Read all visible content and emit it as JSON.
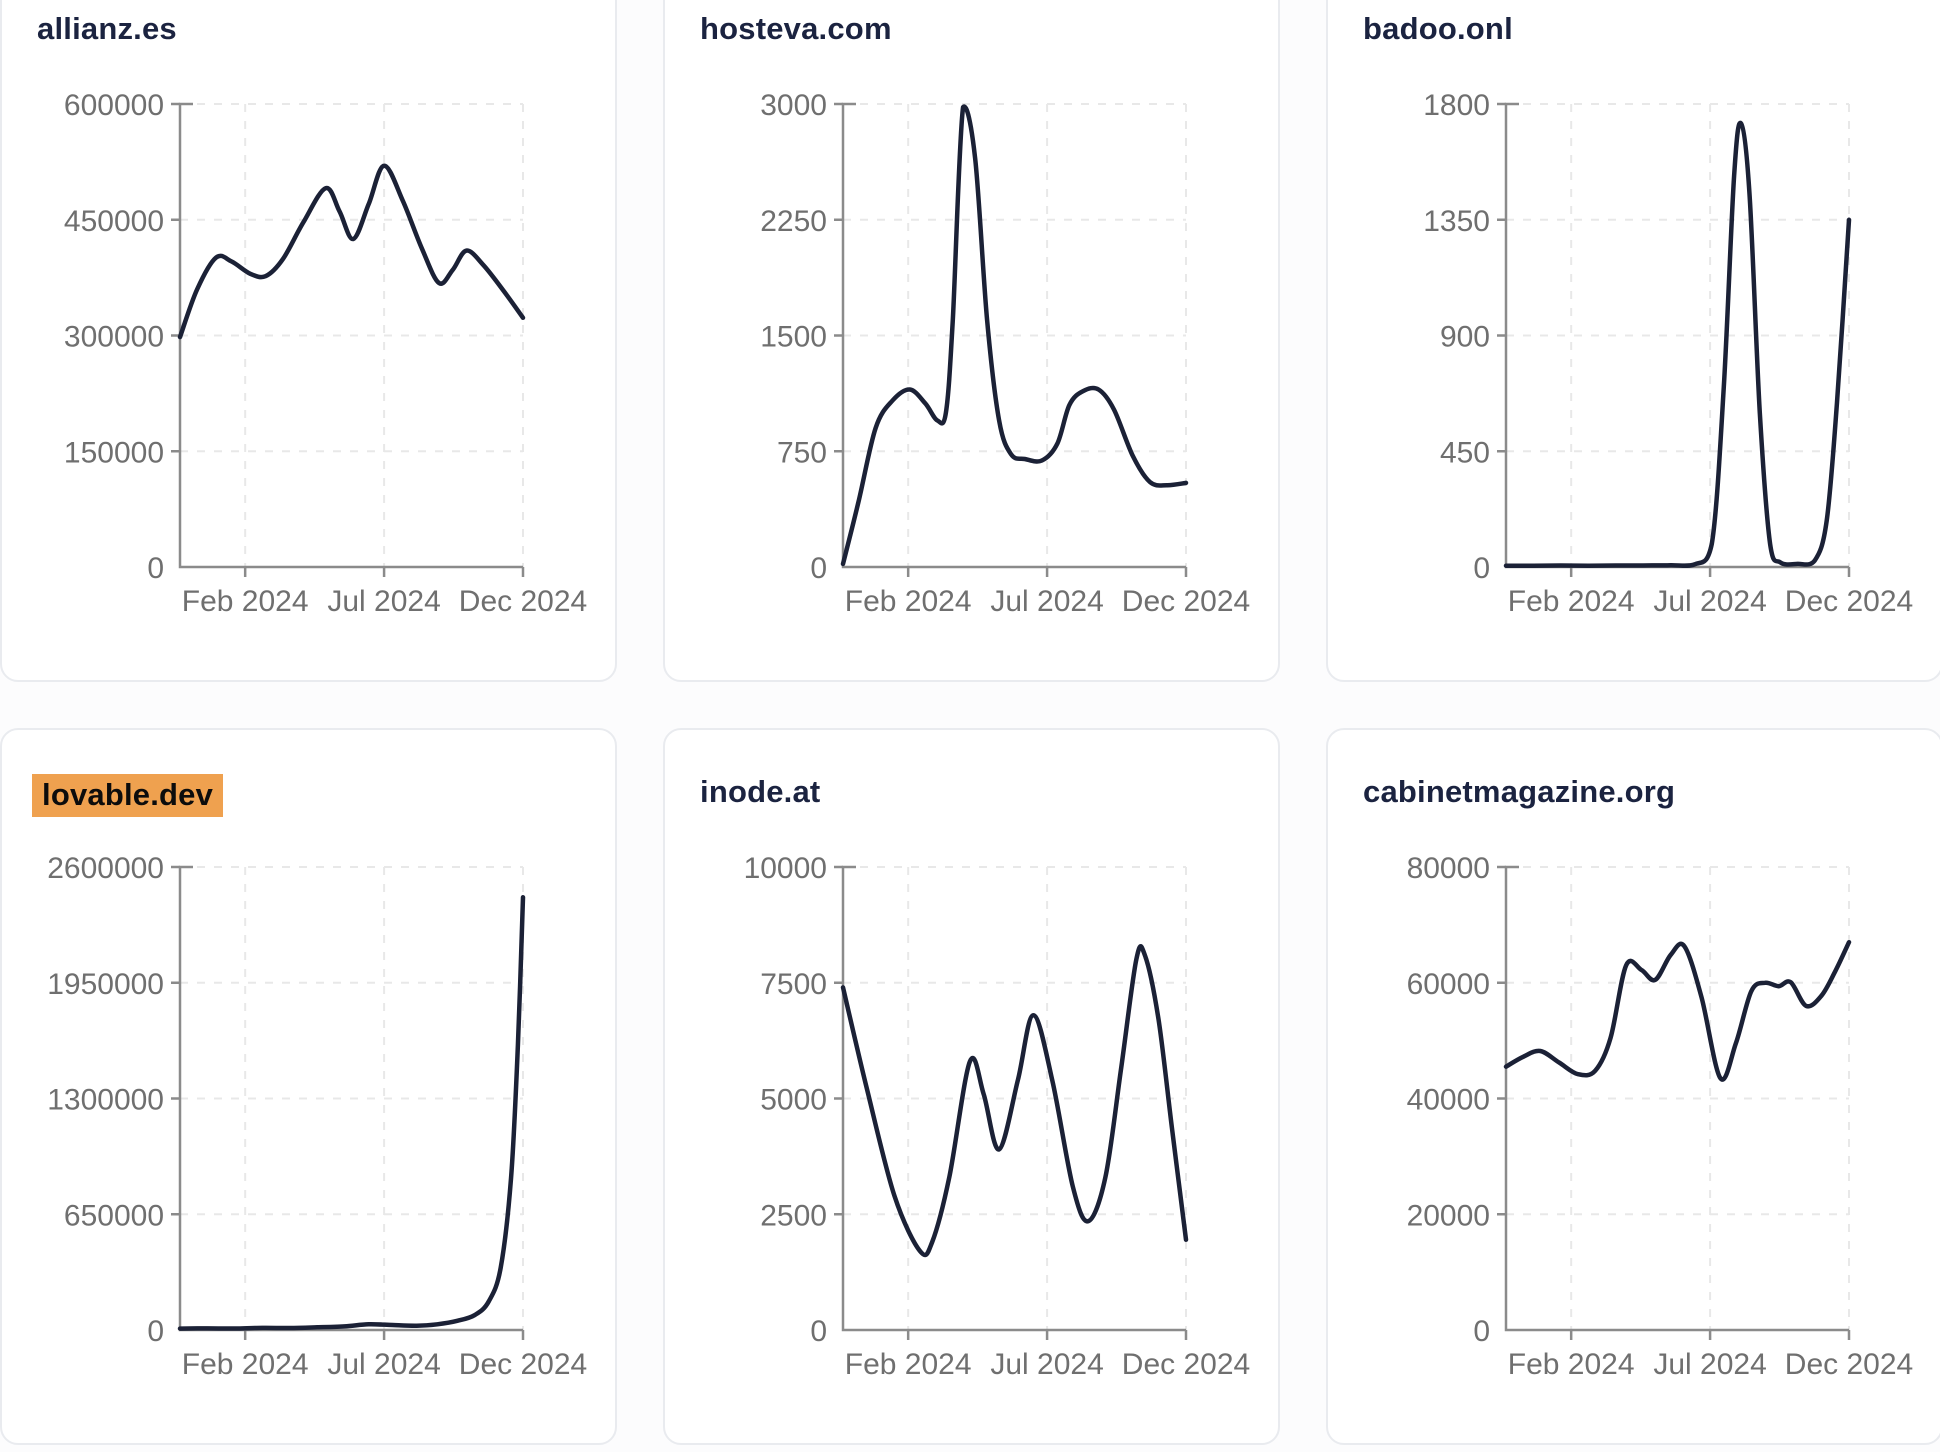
{
  "colors": {
    "page_bg": "#fcfcfd",
    "card_bg": "#ffffff",
    "card_border": "#e9ebef",
    "title": "#1b2340",
    "series_line": "#1b2136",
    "axis": "#8b8b8b",
    "grid": "#e8e8e8",
    "tick_label": "#6f6f6f",
    "highlight_bg": "#efa14f",
    "highlight_text": "#0c0c0c"
  },
  "chart_data": [
    {
      "type": "line",
      "title": "allianz.es",
      "title_highlighted": false,
      "ylim": [
        0,
        600000
      ],
      "yticks": [
        0,
        150000,
        300000,
        450000,
        600000
      ],
      "grid": true,
      "legend": "none",
      "x_ticks": [
        {
          "label": "Feb 2024",
          "f": 0.19
        },
        {
          "label": "Jul 2024",
          "f": 0.595
        },
        {
          "label": "Dec 2024",
          "f": 1.0
        }
      ],
      "points": [
        [
          0.0,
          298000
        ],
        [
          0.05,
          360000
        ],
        [
          0.105,
          401000
        ],
        [
          0.15,
          396000
        ],
        [
          0.205,
          380000
        ],
        [
          0.25,
          377000
        ],
        [
          0.3,
          399000
        ],
        [
          0.36,
          447000
        ],
        [
          0.425,
          491000
        ],
        [
          0.465,
          461000
        ],
        [
          0.505,
          425000
        ],
        [
          0.55,
          470000
        ],
        [
          0.595,
          520000
        ],
        [
          0.65,
          474000
        ],
        [
          0.705,
          413000
        ],
        [
          0.755,
          368000
        ],
        [
          0.795,
          385000
        ],
        [
          0.835,
          410000
        ],
        [
          0.885,
          391000
        ],
        [
          0.945,
          357000
        ],
        [
          1.0,
          323000
        ]
      ]
    },
    {
      "type": "line",
      "title": "hosteva.com",
      "title_highlighted": false,
      "ylim": [
        0,
        3000
      ],
      "yticks": [
        0,
        750,
        1500,
        2250,
        3000
      ],
      "grid": true,
      "legend": "none",
      "x_ticks": [
        {
          "label": "Feb 2024",
          "f": 0.19
        },
        {
          "label": "Jul 2024",
          "f": 0.595
        },
        {
          "label": "Dec 2024",
          "f": 1.0
        }
      ],
      "points": [
        [
          0.0,
          20
        ],
        [
          0.045,
          420
        ],
        [
          0.095,
          900
        ],
        [
          0.145,
          1080
        ],
        [
          0.195,
          1150
        ],
        [
          0.24,
          1060
        ],
        [
          0.275,
          950
        ],
        [
          0.3,
          1000
        ],
        [
          0.32,
          1600
        ],
        [
          0.35,
          2980
        ],
        [
          0.385,
          2650
        ],
        [
          0.42,
          1600
        ],
        [
          0.455,
          950
        ],
        [
          0.49,
          730
        ],
        [
          0.53,
          700
        ],
        [
          0.58,
          690
        ],
        [
          0.625,
          800
        ],
        [
          0.66,
          1050
        ],
        [
          0.7,
          1140
        ],
        [
          0.745,
          1150
        ],
        [
          0.79,
          1020
        ],
        [
          0.845,
          720
        ],
        [
          0.895,
          550
        ],
        [
          0.945,
          530
        ],
        [
          1.0,
          545
        ]
      ]
    },
    {
      "type": "line",
      "title": "badoo.onl",
      "title_highlighted": false,
      "ylim": [
        0,
        1800
      ],
      "yticks": [
        0,
        450,
        900,
        1350,
        1800
      ],
      "grid": true,
      "legend": "none",
      "x_ticks": [
        {
          "label": "Feb 2024",
          "f": 0.19
        },
        {
          "label": "Jul 2024",
          "f": 0.595
        },
        {
          "label": "Dec 2024",
          "f": 1.0
        }
      ],
      "points": [
        [
          0.0,
          5
        ],
        [
          0.08,
          5
        ],
        [
          0.16,
          6
        ],
        [
          0.24,
          5
        ],
        [
          0.32,
          6
        ],
        [
          0.4,
          6
        ],
        [
          0.48,
          7
        ],
        [
          0.55,
          10
        ],
        [
          0.6,
          90
        ],
        [
          0.635,
          700
        ],
        [
          0.665,
          1520
        ],
        [
          0.685,
          1725
        ],
        [
          0.71,
          1450
        ],
        [
          0.74,
          600
        ],
        [
          0.77,
          90
        ],
        [
          0.8,
          18
        ],
        [
          0.85,
          12
        ],
        [
          0.9,
          25
        ],
        [
          0.935,
          180
        ],
        [
          0.965,
          640
        ],
        [
          1.0,
          1350
        ]
      ]
    },
    {
      "type": "line",
      "title": "lovable.dev",
      "title_highlighted": true,
      "ylim": [
        0,
        2600000
      ],
      "yticks": [
        0,
        650000,
        1300000,
        1950000,
        2600000
      ],
      "grid": true,
      "legend": "none",
      "x_ticks": [
        {
          "label": "Feb 2024",
          "f": 0.19
        },
        {
          "label": "Jul 2024",
          "f": 0.595
        },
        {
          "label": "Dec 2024",
          "f": 1.0
        }
      ],
      "points": [
        [
          0.0,
          8000
        ],
        [
          0.08,
          9000
        ],
        [
          0.16,
          8500
        ],
        [
          0.24,
          12000
        ],
        [
          0.32,
          11000
        ],
        [
          0.4,
          15000
        ],
        [
          0.48,
          20000
        ],
        [
          0.55,
          32000
        ],
        [
          0.62,
          28000
        ],
        [
          0.69,
          24000
        ],
        [
          0.75,
          32000
        ],
        [
          0.81,
          52000
        ],
        [
          0.86,
          85000
        ],
        [
          0.9,
          160000
        ],
        [
          0.935,
          350000
        ],
        [
          0.965,
          850000
        ],
        [
          0.985,
          1600000
        ],
        [
          1.0,
          2430000
        ]
      ]
    },
    {
      "type": "line",
      "title": "inode.at",
      "title_highlighted": false,
      "ylim": [
        0,
        10000
      ],
      "yticks": [
        0,
        2500,
        5000,
        7500,
        10000
      ],
      "grid": true,
      "legend": "none",
      "x_ticks": [
        {
          "label": "Feb 2024",
          "f": 0.19
        },
        {
          "label": "Jul 2024",
          "f": 0.595
        },
        {
          "label": "Dec 2024",
          "f": 1.0
        }
      ],
      "points": [
        [
          0.0,
          7400
        ],
        [
          0.07,
          5200
        ],
        [
          0.15,
          2900
        ],
        [
          0.225,
          1700
        ],
        [
          0.26,
          1900
        ],
        [
          0.31,
          3300
        ],
        [
          0.37,
          5800
        ],
        [
          0.41,
          5100
        ],
        [
          0.455,
          3900
        ],
        [
          0.51,
          5400
        ],
        [
          0.555,
          6800
        ],
        [
          0.61,
          5400
        ],
        [
          0.67,
          3100
        ],
        [
          0.715,
          2350
        ],
        [
          0.765,
          3300
        ],
        [
          0.81,
          5600
        ],
        [
          0.855,
          8000
        ],
        [
          0.88,
          8100
        ],
        [
          0.92,
          6700
        ],
        [
          0.96,
          4300
        ],
        [
          1.0,
          1950
        ]
      ]
    },
    {
      "type": "line",
      "title": "cabinetmagazine.org",
      "title_highlighted": false,
      "ylim": [
        0,
        80000
      ],
      "yticks": [
        0,
        20000,
        40000,
        60000,
        80000
      ],
      "grid": true,
      "legend": "none",
      "x_ticks": [
        {
          "label": "Feb 2024",
          "f": 0.19
        },
        {
          "label": "Jul 2024",
          "f": 0.595
        },
        {
          "label": "Dec 2024",
          "f": 1.0
        }
      ],
      "points": [
        [
          0.0,
          45500
        ],
        [
          0.05,
          47200
        ],
        [
          0.1,
          48200
        ],
        [
          0.155,
          46200
        ],
        [
          0.21,
          44200
        ],
        [
          0.26,
          44800
        ],
        [
          0.305,
          50500
        ],
        [
          0.35,
          63000
        ],
        [
          0.395,
          62200
        ],
        [
          0.435,
          60500
        ],
        [
          0.48,
          64800
        ],
        [
          0.52,
          66300
        ],
        [
          0.57,
          57500
        ],
        [
          0.625,
          43500
        ],
        [
          0.67,
          49500
        ],
        [
          0.715,
          58500
        ],
        [
          0.755,
          60000
        ],
        [
          0.795,
          59400
        ],
        [
          0.83,
          60100
        ],
        [
          0.875,
          56000
        ],
        [
          0.92,
          57800
        ],
        [
          0.96,
          62000
        ],
        [
          1.0,
          67000
        ]
      ]
    }
  ]
}
